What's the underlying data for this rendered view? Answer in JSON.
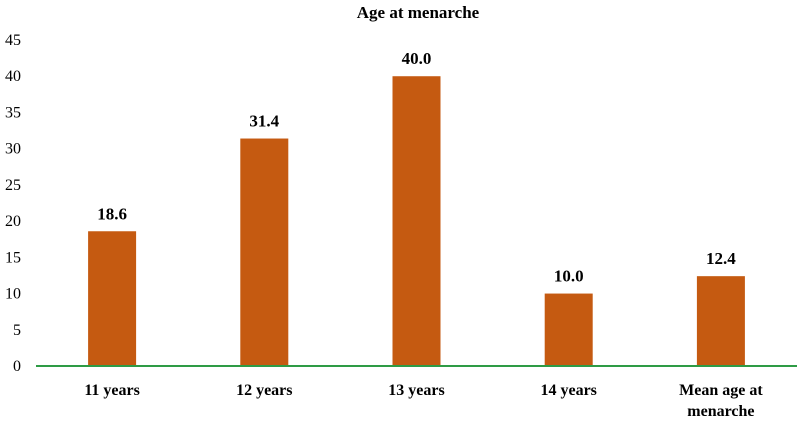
{
  "chart_data": {
    "type": "bar",
    "title": "Age at menarche",
    "categories": [
      "11 years",
      "12 years",
      "13 years",
      "14 years",
      "Mean age at menarche"
    ],
    "category_lines": [
      [
        "11 years"
      ],
      [
        "12 years"
      ],
      [
        "13 years"
      ],
      [
        "14 years"
      ],
      [
        "Mean age at",
        "menarche"
      ]
    ],
    "values": [
      18.6,
      31.4,
      40.0,
      10.0,
      12.4
    ],
    "data_labels": [
      "18.6",
      "31.4",
      "40.0",
      "10.0",
      "12.4"
    ],
    "ylim": [
      0,
      45
    ],
    "yticks": [
      0,
      5,
      10,
      15,
      20,
      25,
      30,
      35,
      40,
      45
    ],
    "xlabel": "",
    "ylabel": "",
    "grid": false,
    "colors": {
      "bar": "#C55A11",
      "axis": "#2E9B45"
    }
  }
}
